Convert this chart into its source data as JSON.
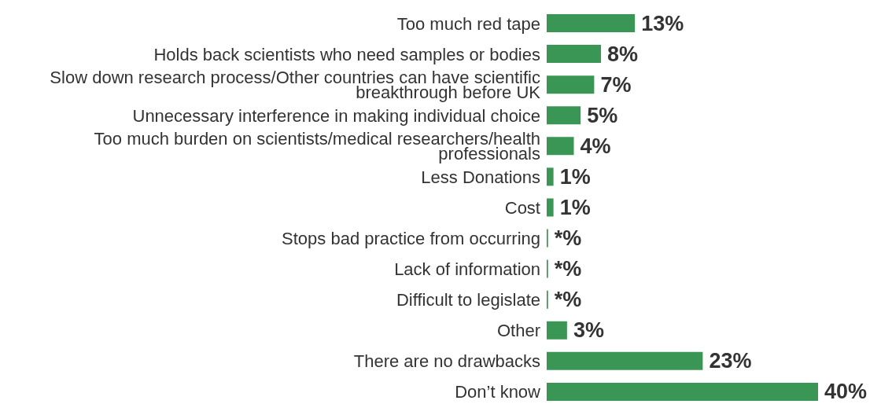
{
  "chart_data": {
    "type": "bar",
    "orientation": "horizontal",
    "categories": [
      "Too much red tape",
      "Holds back scientists who need samples or bodies",
      "Slow down research process/Other countries can have scientific breakthrough before UK",
      "Unnecessary interference in making individual choice",
      "Too much burden on scientists/medical researchers/health professionals",
      "Less Donations",
      "Cost",
      "Stops bad practice from occurring",
      "Lack of information",
      "Difficult to legislate",
      "Other",
      "There are no drawbacks",
      "Don’t know"
    ],
    "values": [
      13,
      8,
      7,
      5,
      4,
      1,
      1,
      0.2,
      0.2,
      0.2,
      3,
      23,
      40
    ],
    "value_labels": [
      "13%",
      "8%",
      "7%",
      "5%",
      "4%",
      "1%",
      "1%",
      "*%",
      "*%",
      "*%",
      "3%",
      "23%",
      "40%"
    ],
    "color": "#3a9655",
    "xlim": [
      0,
      40
    ],
    "tick_labels": "y"
  }
}
